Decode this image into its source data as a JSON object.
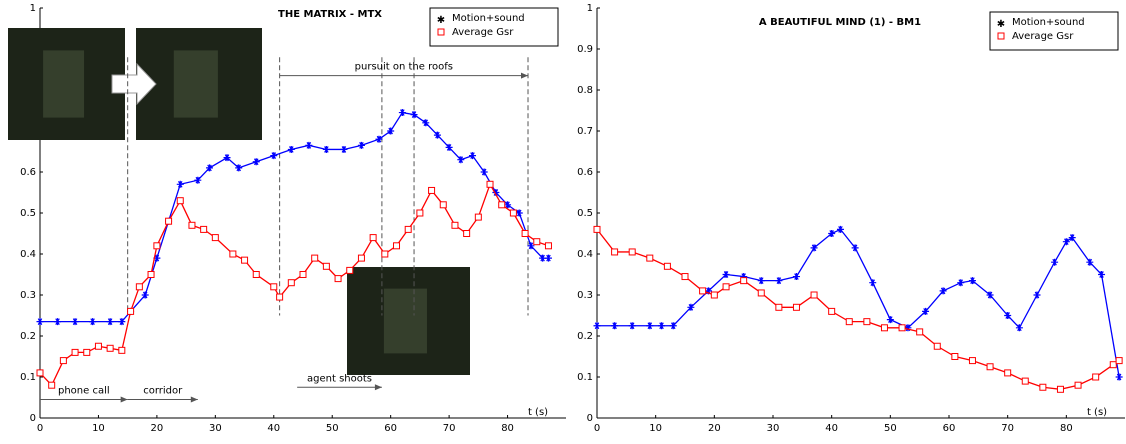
{
  "chart_data": [
    {
      "type": "line",
      "title": "THE MATRIX - MTX",
      "xlabel": "t (s)",
      "legend": "upper right",
      "xlim": [
        0,
        90
      ],
      "ylim": [
        0,
        1
      ],
      "xticks": [
        0,
        10,
        20,
        30,
        40,
        50,
        60,
        70,
        80
      ],
      "yticks": [
        0,
        0.1,
        0.2,
        0.3,
        0.4,
        0.5,
        0.6,
        1
      ],
      "series": [
        {
          "name": "Motion+sound",
          "color": "#0000ff",
          "marker": "star",
          "x": [
            0,
            3,
            6,
            9,
            12,
            14,
            15.5,
            18,
            20,
            22,
            24,
            27,
            29,
            32,
            34,
            37,
            40,
            43,
            46,
            49,
            52,
            55,
            58,
            60,
            62,
            64,
            66,
            68,
            70,
            72,
            74,
            76,
            78,
            80,
            82,
            84,
            86,
            87
          ],
          "values": [
            0.235,
            0.235,
            0.235,
            0.235,
            0.235,
            0.235,
            0.26,
            0.3,
            0.39,
            0.48,
            0.57,
            0.58,
            0.61,
            0.635,
            0.61,
            0.625,
            0.64,
            0.655,
            0.665,
            0.655,
            0.655,
            0.665,
            0.68,
            0.7,
            0.745,
            0.74,
            0.72,
            0.69,
            0.66,
            0.63,
            0.64,
            0.6,
            0.55,
            0.52,
            0.5,
            0.42,
            0.39,
            0.39
          ]
        },
        {
          "name": "Average Gsr",
          "color": "#ff0000",
          "marker": "square",
          "x": [
            0,
            2,
            4,
            6,
            8,
            10,
            12,
            14,
            15.5,
            17,
            19,
            20,
            22,
            24,
            26,
            28,
            30,
            33,
            35,
            37,
            40,
            41,
            43,
            45,
            47,
            49,
            51,
            53,
            55,
            57,
            59,
            61,
            63,
            65,
            67,
            69,
            71,
            73,
            75,
            77,
            79,
            81,
            83,
            85,
            87
          ],
          "values": [
            0.11,
            0.08,
            0.14,
            0.16,
            0.16,
            0.175,
            0.17,
            0.165,
            0.26,
            0.32,
            0.35,
            0.42,
            0.48,
            0.53,
            0.47,
            0.46,
            0.44,
            0.4,
            0.385,
            0.35,
            0.32,
            0.295,
            0.33,
            0.35,
            0.39,
            0.37,
            0.34,
            0.36,
            0.39,
            0.44,
            0.4,
            0.42,
            0.46,
            0.5,
            0.555,
            0.52,
            0.47,
            0.45,
            0.49,
            0.57,
            0.52,
            0.5,
            0.45,
            0.43,
            0.42
          ]
        }
      ],
      "vlines": [
        15,
        41,
        58.5,
        64,
        83.5
      ],
      "events": [
        {
          "label": "pursuit on the roofs",
          "start": 41,
          "end": 83.5,
          "y": 0.835
        },
        {
          "label": "phone call",
          "start": 0,
          "end": 15,
          "y": 0.045
        },
        {
          "label": "corridor",
          "start": 15,
          "end": 27,
          "y": 0.045
        },
        {
          "label": "agent shoots",
          "start": 44,
          "end": 58.5,
          "y": 0.075
        }
      ]
    },
    {
      "type": "line",
      "title": "A BEAUTIFUL MIND (1) - BM1",
      "xlabel": "t (s)",
      "legend": "upper right",
      "xlim": [
        0,
        90
      ],
      "ylim": [
        0,
        1
      ],
      "xticks": [
        0,
        10,
        20,
        30,
        40,
        50,
        60,
        70,
        80
      ],
      "yticks": [
        0,
        0.1,
        0.2,
        0.3,
        0.4,
        0.5,
        0.6,
        0.7,
        0.8,
        0.9,
        1
      ],
      "series": [
        {
          "name": "Motion+sound",
          "color": "#0000ff",
          "marker": "star",
          "x": [
            0,
            3,
            6,
            9,
            11,
            13,
            16,
            19,
            22,
            25,
            28,
            31,
            34,
            37,
            40,
            41.5,
            44,
            47,
            50,
            53,
            56,
            59,
            62,
            64,
            67,
            70,
            72,
            75,
            78,
            80,
            81,
            84,
            86,
            89
          ],
          "values": [
            0.225,
            0.225,
            0.225,
            0.225,
            0.225,
            0.225,
            0.27,
            0.31,
            0.35,
            0.345,
            0.335,
            0.335,
            0.345,
            0.415,
            0.45,
            0.46,
            0.415,
            0.33,
            0.24,
            0.22,
            0.26,
            0.31,
            0.33,
            0.335,
            0.3,
            0.25,
            0.22,
            0.3,
            0.38,
            0.43,
            0.44,
            0.38,
            0.35,
            0.1
          ]
        },
        {
          "name": "Average Gsr",
          "color": "#ff0000",
          "marker": "square",
          "x": [
            0,
            3,
            6,
            9,
            12,
            15,
            18,
            20,
            22,
            25,
            28,
            31,
            34,
            37,
            40,
            43,
            46,
            49,
            52,
            55,
            58,
            61,
            64,
            67,
            70,
            73,
            76,
            79,
            82,
            85,
            88,
            89
          ],
          "values": [
            0.46,
            0.405,
            0.405,
            0.39,
            0.37,
            0.345,
            0.31,
            0.3,
            0.32,
            0.335,
            0.305,
            0.27,
            0.27,
            0.3,
            0.26,
            0.235,
            0.235,
            0.22,
            0.22,
            0.21,
            0.175,
            0.15,
            0.14,
            0.125,
            0.11,
            0.09,
            0.075,
            0.07,
            0.08,
            0.1,
            0.13,
            0.14
          ]
        }
      ]
    }
  ]
}
